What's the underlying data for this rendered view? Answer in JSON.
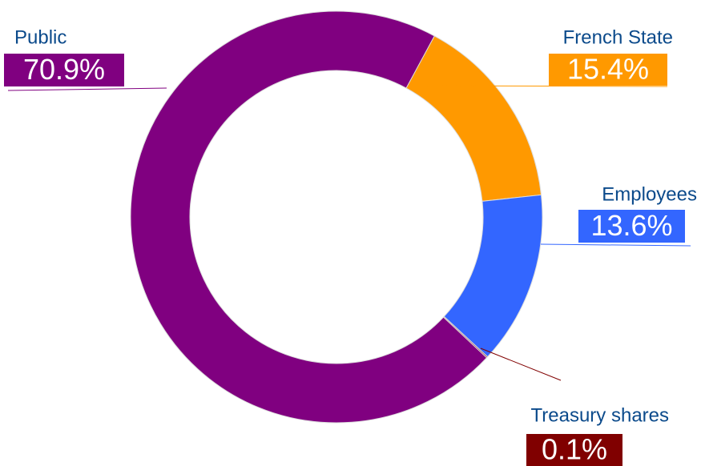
{
  "chart_data": {
    "type": "donut",
    "categories": [
      "French State",
      "Employees",
      "Treasury shares",
      "Public"
    ],
    "values": [
      15.4,
      13.6,
      0.1,
      70.9
    ],
    "value_labels": [
      "15.4%",
      "13.6%",
      "0.1%",
      "70.9%"
    ],
    "colors": [
      "#ff9900",
      "#3366ff",
      "#800000",
      "#800080"
    ]
  }
}
